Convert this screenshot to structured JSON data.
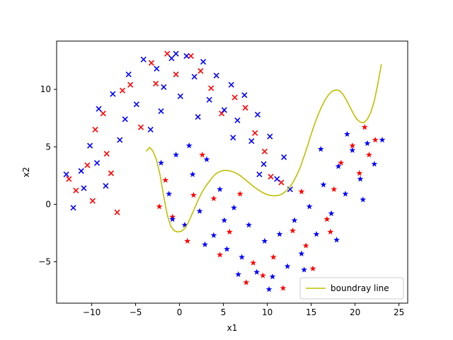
{
  "chart_data": {
    "type": "scatter",
    "title": "",
    "xlabel": "x1",
    "ylabel": "x2",
    "xlim": [
      -14,
      26
    ],
    "ylim": [
      -8.6,
      14.2
    ],
    "xticks": [
      -10,
      -5,
      0,
      5,
      10,
      15,
      20,
      25
    ],
    "yticks": [
      -5,
      0,
      5,
      10
    ],
    "xtick_labels": [
      "−10",
      "−5",
      "0",
      "5",
      "10",
      "15",
      "20",
      "25"
    ],
    "ytick_labels": [
      "−5",
      "0",
      "5",
      "10"
    ],
    "grid": false,
    "legend": {
      "placement": "lower-right",
      "entries": [
        "boundray line"
      ]
    },
    "colors": {
      "red": "#ff0000",
      "blue": "#0000ff",
      "boundary": "#bfbf00"
    },
    "markers": {
      "x": "cross",
      "star": "star"
    },
    "series": [
      {
        "marker": "x",
        "color": "#ff0000",
        "points": [
          [
            -11.8,
            1.2
          ],
          [
            -10.5,
            3.4
          ],
          [
            -9.6,
            6.5
          ],
          [
            -8.7,
            7.9
          ],
          [
            -7.8,
            2.7
          ],
          [
            -6.5,
            9.9
          ],
          [
            -5.6,
            10.4
          ],
          [
            -4.4,
            6.7
          ],
          [
            -3.2,
            12.3
          ],
          [
            -1.4,
            13.1
          ],
          [
            -0.4,
            11.3
          ],
          [
            1.3,
            12.9
          ],
          [
            2.4,
            11.6
          ],
          [
            3.6,
            10.1
          ],
          [
            4.8,
            7.9
          ],
          [
            6.3,
            9.3
          ],
          [
            7.5,
            8.4
          ],
          [
            8.6,
            6.2
          ],
          [
            9.7,
            4.6
          ],
          [
            10.4,
            2.4
          ],
          [
            11.6,
            1.9
          ],
          [
            -7.1,
            -0.7
          ],
          [
            -9.9,
            0.3
          ],
          [
            -12.6,
            2.2
          ],
          [
            -8.3,
            4.4
          ],
          [
            -2.7,
            10.5
          ]
        ]
      },
      {
        "marker": "star",
        "color": "#ff0000",
        "points": [
          [
            -1.6,
            2.1
          ],
          [
            -0.8,
            -1.1
          ],
          [
            0.9,
            -3.2
          ],
          [
            2.6,
            4.3
          ],
          [
            3.9,
            0.5
          ],
          [
            5.7,
            -2.4
          ],
          [
            6.9,
            0.9
          ],
          [
            8.4,
            -5.1
          ],
          [
            9.5,
            -6.2
          ],
          [
            10.7,
            -4.6
          ],
          [
            11.8,
            -7.3
          ],
          [
            12.9,
            -2.3
          ],
          [
            14.4,
            -3.6
          ],
          [
            15.2,
            -5.6
          ],
          [
            16.8,
            -1.3
          ],
          [
            17.6,
            1.3
          ],
          [
            18.4,
            3.6
          ],
          [
            19.7,
            5.1
          ],
          [
            20.5,
            2.7
          ],
          [
            21.6,
            4.3
          ],
          [
            22.3,
            5.6
          ],
          [
            -2.3,
            -0.2
          ],
          [
            7.6,
            -6.8
          ],
          [
            4.6,
            -4.4
          ],
          [
            13.9,
            1.1
          ],
          [
            17.2,
            -2.4
          ],
          [
            21.1,
            6.7
          ],
          [
            1.6,
            0.8
          ]
        ]
      },
      {
        "marker": "x",
        "color": "#0000ff",
        "points": [
          [
            -12.1,
            -0.3
          ],
          [
            -11.2,
            2.9
          ],
          [
            -10.2,
            5.1
          ],
          [
            -9.2,
            8.3
          ],
          [
            -8.4,
            1.6
          ],
          [
            -7.6,
            9.6
          ],
          [
            -6.8,
            5.6
          ],
          [
            -5.8,
            11.3
          ],
          [
            -4.9,
            8.7
          ],
          [
            -4.1,
            12.6
          ],
          [
            -3.3,
            6.5
          ],
          [
            -2.6,
            11.8
          ],
          [
            -1.8,
            10.2
          ],
          [
            -0.9,
            12.7
          ],
          [
            0.1,
            9.4
          ],
          [
            0.8,
            12.9
          ],
          [
            1.7,
            11.1
          ],
          [
            2.7,
            12.4
          ],
          [
            3.4,
            9.1
          ],
          [
            4.2,
            11.2
          ],
          [
            5.1,
            8.2
          ],
          [
            5.9,
            10.4
          ],
          [
            6.6,
            7.3
          ],
          [
            7.4,
            9.5
          ],
          [
            8.2,
            5.5
          ],
          [
            8.9,
            7.8
          ],
          [
            9.6,
            3.5
          ],
          [
            10.3,
            5.9
          ],
          [
            11.1,
            2.2
          ],
          [
            11.9,
            4.1
          ],
          [
            12.6,
            1.3
          ],
          [
            -9.4,
            3.6
          ],
          [
            -6.2,
            7.4
          ],
          [
            -10.9,
            1.4
          ],
          [
            -2.1,
            8.1
          ],
          [
            2.1,
            7.6
          ],
          [
            6.1,
            5.8
          ],
          [
            9.1,
            2.6
          ],
          [
            -12.9,
            2.6
          ],
          [
            -0.4,
            13.1
          ]
        ]
      },
      {
        "marker": "star",
        "color": "#0000ff",
        "points": [
          [
            -2.1,
            3.6
          ],
          [
            -1.2,
            0.9
          ],
          [
            -0.4,
            4.3
          ],
          [
            0.6,
            -1.8
          ],
          [
            1.5,
            2.6
          ],
          [
            2.3,
            -0.6
          ],
          [
            3.1,
            3.9
          ],
          [
            3.9,
            -2.7
          ],
          [
            4.6,
            1.3
          ],
          [
            5.4,
            -3.9
          ],
          [
            6.2,
            -0.3
          ],
          [
            7.1,
            -4.6
          ],
          [
            7.9,
            -1.8
          ],
          [
            8.8,
            -5.9
          ],
          [
            9.7,
            -3.2
          ],
          [
            10.6,
            -6.3
          ],
          [
            11.4,
            -2.6
          ],
          [
            12.3,
            -5.4
          ],
          [
            13.1,
            -1.4
          ],
          [
            13.9,
            -4.3
          ],
          [
            14.8,
            -0.2
          ],
          [
            15.6,
            -2.6
          ],
          [
            16.4,
            1.7
          ],
          [
            17.3,
            -0.8
          ],
          [
            18.1,
            3.3
          ],
          [
            18.9,
            0.9
          ],
          [
            19.7,
            4.7
          ],
          [
            20.6,
            2.2
          ],
          [
            21.4,
            5.3
          ],
          [
            22.2,
            3.5
          ],
          [
            23.1,
            5.6
          ],
          [
            -0.8,
            -1.3
          ],
          [
            2.9,
            -3.5
          ],
          [
            6.7,
            -6.1
          ],
          [
            10.2,
            -7.4
          ],
          [
            14.2,
            -5.7
          ],
          [
            17.9,
            -3.1
          ],
          [
            20.9,
            0.4
          ],
          [
            16.1,
            4.8
          ],
          [
            19.1,
            6.1
          ],
          [
            1.1,
            5.1
          ],
          [
            5.1,
            -1.4
          ]
        ]
      }
    ],
    "boundary_line": {
      "name": "boundray line",
      "color": "#bfbf00",
      "x": [
        -3.8,
        -3.4,
        -3.0,
        -2.6,
        -2.2,
        -1.8,
        -1.4,
        -1.0,
        -0.6,
        -0.2,
        0.2,
        0.6,
        1.0,
        1.4,
        1.8,
        2.2,
        2.6,
        3.0,
        3.4,
        3.8,
        4.2,
        4.6,
        5.0,
        5.4,
        5.8,
        6.2,
        6.6,
        7.0,
        7.4,
        7.8,
        8.2,
        8.6,
        9.0,
        9.4,
        9.8,
        10.2,
        10.6,
        11.0,
        11.4,
        11.8,
        12.2,
        12.6,
        13.0,
        13.4,
        13.8,
        14.2,
        14.6,
        15.0,
        15.4,
        15.8,
        16.2,
        16.6,
        17.0,
        17.4,
        17.8,
        18.2,
        18.6,
        19.0,
        19.4,
        19.8,
        20.2,
        20.6,
        21.0,
        21.4,
        21.8,
        22.2,
        22.6,
        23.0
      ],
      "y": [
        4.6,
        4.95,
        4.6,
        3.8,
        2.5,
        0.7,
        -0.9,
        -1.9,
        -2.3,
        -2.4,
        -2.35,
        -2.1,
        -1.6,
        -0.9,
        -0.2,
        0.5,
        1.1,
        1.6,
        2.0,
        2.4,
        2.7,
        2.85,
        2.95,
        2.95,
        2.9,
        2.8,
        2.65,
        2.45,
        2.2,
        1.95,
        1.7,
        1.45,
        1.25,
        1.05,
        0.9,
        0.8,
        0.75,
        0.75,
        0.8,
        0.95,
        1.2,
        1.55,
        2.0,
        2.6,
        3.3,
        4.2,
        5.1,
        6.1,
        7.0,
        7.8,
        8.5,
        9.1,
        9.55,
        9.85,
        9.95,
        9.9,
        9.6,
        9.1,
        8.5,
        7.9,
        7.4,
        7.15,
        7.1,
        7.4,
        8.0,
        9.0,
        10.5,
        12.2
      ]
    }
  }
}
